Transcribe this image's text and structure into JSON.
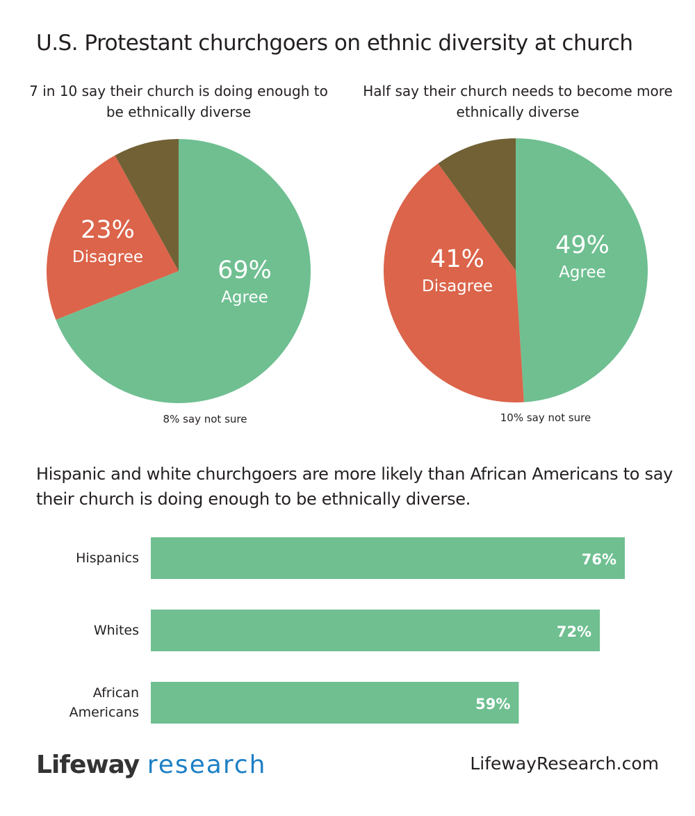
{
  "title": "U.S. Protestant churchgoers on ethnic diversity at church",
  "colors": {
    "agree": "#6fbf91",
    "disagree": "#db644a",
    "not_sure": "#716135",
    "logo_dark": "#333333",
    "logo_blue": "#1d7fc4"
  },
  "chart_data": [
    {
      "type": "pie",
      "title": "7 in 10 say their church is doing enough to be ethnically diverse",
      "slices": [
        {
          "label": "Agree",
          "value": 69,
          "text": "69%"
        },
        {
          "label": "Disagree",
          "value": 23,
          "text": "23%"
        },
        {
          "label": "Not sure",
          "value": 8
        }
      ],
      "note": "8% say not sure"
    },
    {
      "type": "pie",
      "title": "Half say their church needs to become more ethnically diverse",
      "slices": [
        {
          "label": "Agree",
          "value": 49,
          "text": "49%"
        },
        {
          "label": "Disagree",
          "value": 41,
          "text": "41%"
        },
        {
          "label": "Not sure",
          "value": 10
        }
      ],
      "note": "10% say not sure"
    },
    {
      "type": "bar",
      "orientation": "horizontal",
      "title": "Hispanic and white churchgoers are more likely than African Americans to say their church is doing enough to be ethnically diverse.",
      "categories": [
        "Hispanics",
        "Whites",
        "African Americans"
      ],
      "category_lines": [
        [
          "Hispanics"
        ],
        [
          "Whites"
        ],
        [
          "African",
          "Americans"
        ]
      ],
      "values": [
        76,
        72,
        59
      ],
      "labels": [
        "76%",
        "72%",
        "59%"
      ]
    }
  ],
  "footer": {
    "logo_part1": "Lifeway",
    "logo_part2": "research",
    "url": "LifewayResearch.com"
  }
}
